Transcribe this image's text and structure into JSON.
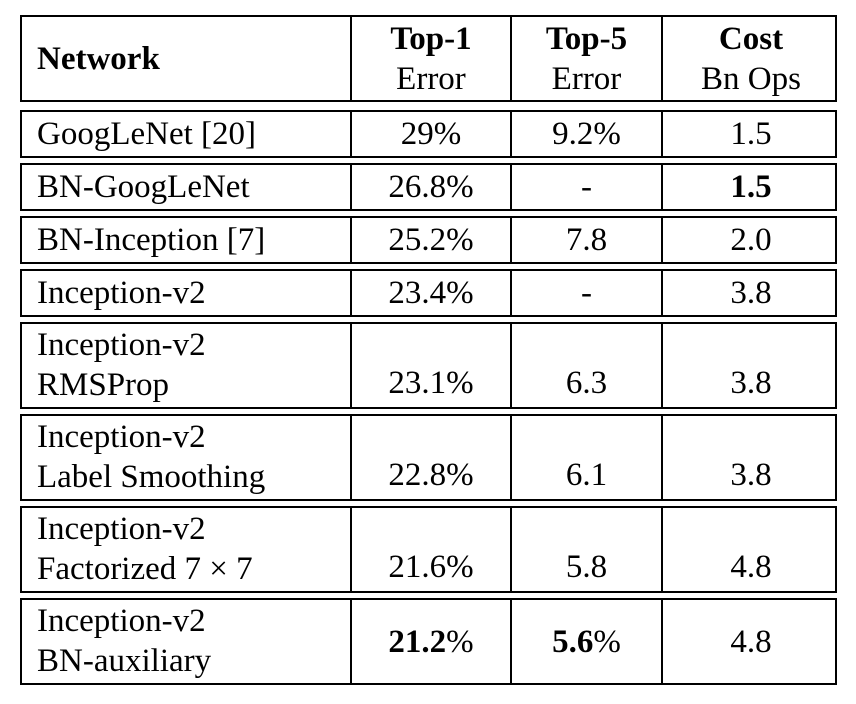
{
  "page": {
    "background_color": "#ffffff",
    "border_color": "#000000",
    "text_color": "#000000"
  },
  "table": {
    "header": {
      "network": "Network",
      "top1_line1": "Top-1",
      "top1_line2": "Error",
      "top5_line1": "Top-5",
      "top5_line2": "Error",
      "cost_line1": "Cost",
      "cost_line2": "Bn Ops"
    },
    "rows": [
      {
        "network": "GoogLeNet [20]",
        "top1": "29%",
        "top5": "9.2%",
        "cost": "1.5"
      },
      {
        "network": "BN-GoogLeNet",
        "top1": "26.8%",
        "top5": "-",
        "cost": "1.5"
      },
      {
        "network": "BN-Inception [7]",
        "top1": "25.2%",
        "top5": "7.8",
        "cost": "2.0"
      },
      {
        "network": "Inception-v2",
        "top1": "23.4%",
        "top5": "-",
        "cost": "3.8"
      },
      {
        "network_line1": "Inception-v2",
        "network_line2": "RMSProp",
        "top1": "23.1%",
        "top5": "6.3",
        "cost": "3.8"
      },
      {
        "network_line1": "Inception-v2",
        "network_line2": "Label Smoothing",
        "top1": "22.8%",
        "top5": "6.1",
        "cost": "3.8"
      },
      {
        "network_line1": "Inception-v2",
        "network_line2": "Factorized 7 × 7",
        "top1": "21.6%",
        "top5": "5.8",
        "cost": "4.8"
      },
      {
        "network_line1": "Inception-v2",
        "network_line2": "BN-auxiliary",
        "top1_value": "21.2",
        "top1_suffix": "%",
        "top5_value": "5.6",
        "top5_suffix": "%",
        "cost": "4.8"
      }
    ]
  }
}
